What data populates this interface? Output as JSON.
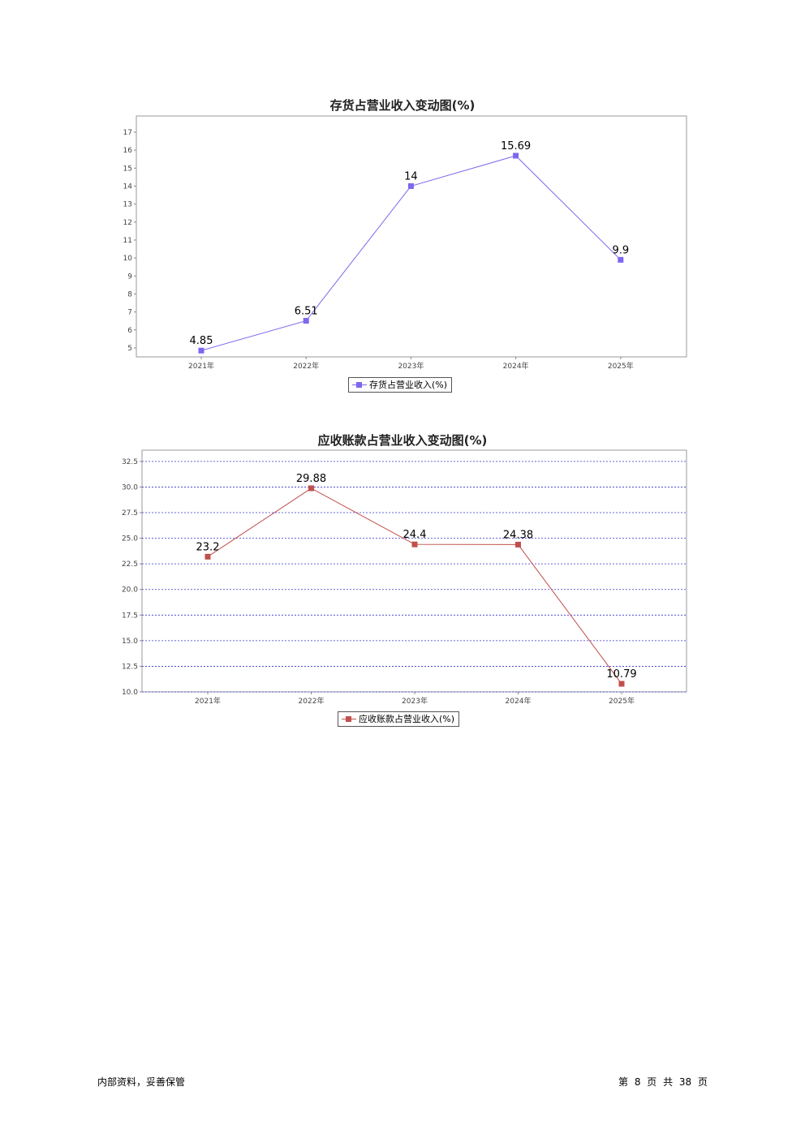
{
  "chart_data": [
    {
      "type": "line",
      "title": "存货占营业收入变动图(%)",
      "categories": [
        "2021年",
        "2022年",
        "2023年",
        "2024年",
        "2025年"
      ],
      "series": [
        {
          "name": "存货占营业收入(%)",
          "values": [
            4.85,
            6.51,
            14,
            15.69,
            9.9
          ],
          "color": "#7b68ee"
        }
      ],
      "data_labels": [
        "4.85",
        "6.51",
        "14",
        "15.69",
        "9.9"
      ],
      "ylim": [
        4.5,
        17.9
      ],
      "yticks": [
        5,
        6,
        7,
        8,
        9,
        10,
        11,
        12,
        13,
        14,
        15,
        16,
        17
      ],
      "ytick_labels": [
        "5",
        "6",
        "7",
        "8",
        "9",
        "10",
        "11",
        "12",
        "13",
        "14",
        "15",
        "16",
        "17"
      ],
      "grid": false,
      "legend": "bottom-center",
      "xlabel": "",
      "ylabel": ""
    },
    {
      "type": "line",
      "title": "应收账款占营业收入变动图(%)",
      "categories": [
        "2021年",
        "2022年",
        "2023年",
        "2024年",
        "2025年"
      ],
      "series": [
        {
          "name": "应收账款占营业收入(%)",
          "values": [
            23.2,
            29.88,
            24.4,
            24.38,
            10.79
          ],
          "color": "#c0504d"
        }
      ],
      "data_labels": [
        "23.2",
        "29.88",
        "24.4",
        "24.38",
        "10.79"
      ],
      "ylim": [
        10,
        33.6
      ],
      "yticks": [
        10,
        12.5,
        15,
        17.5,
        20,
        22.5,
        25,
        27.5,
        30,
        32.5
      ],
      "ytick_labels": [
        "10.0",
        "12.5",
        "15.0",
        "17.5",
        "20.0",
        "22.5",
        "25.0",
        "27.5",
        "30.0",
        "32.5"
      ],
      "grid": true,
      "grid_color": "#3333cc",
      "legend": "bottom-center",
      "xlabel": "",
      "ylabel": ""
    }
  ],
  "footer": {
    "left": "内部资料，妥善保管",
    "right": "第 8 页  共 38 页"
  }
}
